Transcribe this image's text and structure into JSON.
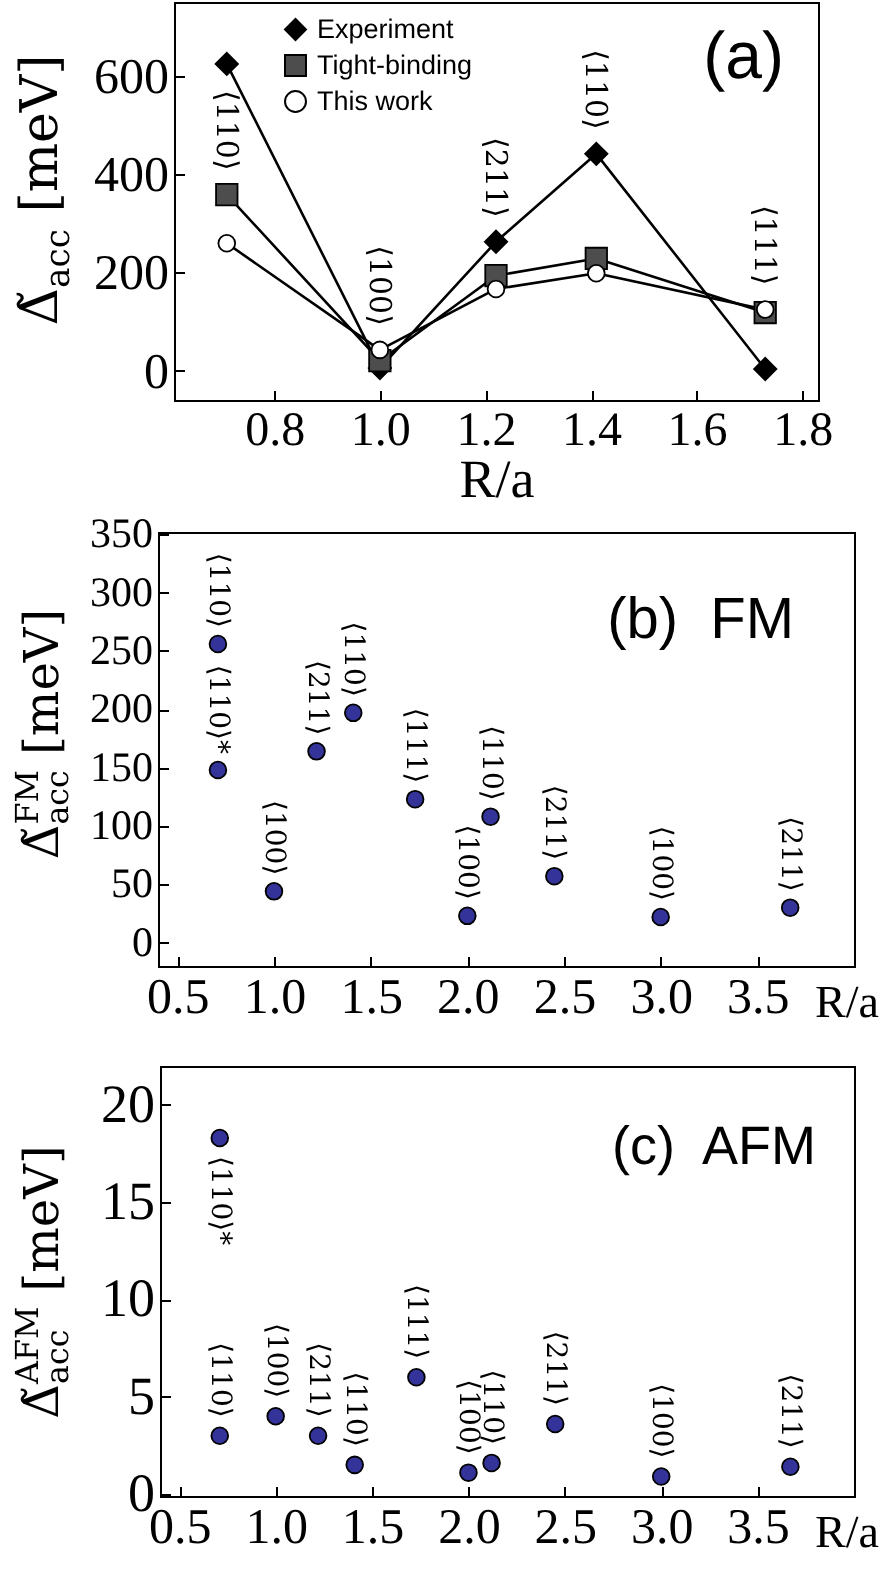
{
  "chart_data": [
    {
      "type": "line",
      "xlabel": "R/a",
      "ylabel": "Δ̃$_{acc}$ [meV]",
      "x": [
        0.71,
        1.0,
        1.22,
        1.41,
        1.73
      ],
      "series": [
        {
          "name": "Experiment",
          "color": "#000000",
          "marker": "diamond",
          "values": [
            624,
            5,
            262,
            441,
            3
          ]
        },
        {
          "name": "Tight-binding",
          "color": "#4d4d4d",
          "marker": "square",
          "values": [
            358,
            20,
            193,
            228,
            118
          ]
        },
        {
          "name": "This work",
          "color": "#ffffff",
          "marker": "circle",
          "values": [
            259,
            42,
            166,
            198,
            124
          ]
        }
      ],
      "xlim": [
        0.61,
        1.83
      ],
      "xticks": [
        0.8,
        {
          "value": 1,
          "label": "1.0"
        },
        1.2,
        1.4,
        1.6,
        1.8
      ],
      "ylim": [
        -60,
        750
      ],
      "yticks": [
        0,
        200,
        400,
        600
      ],
      "legend": "top left",
      "annotations": [
        "(a)",
        {
          "text": "⟨110⟩",
          "x": 0.71,
          "y": 358
        },
        {
          "text": "⟨100⟩",
          "x": 1.0,
          "y": 42
        },
        {
          "text": "⟨211⟩",
          "x": 1.22,
          "y": 262
        },
        {
          "text": "⟨110⟩",
          "x": 1.41,
          "y": 441
        },
        {
          "text": "⟨111⟩",
          "x": 1.73,
          "y": 124
        }
      ]
    },
    {
      "type": "scatter",
      "xlabel": "R/a",
      "ylabel": "Δ̃$_{acc}$$^{FM}$ [meV]",
      "x": [
        0.71,
        0.71,
        1.0,
        1.22,
        1.41,
        1.73,
        2.0,
        2.12,
        2.45,
        3.0,
        3.67
      ],
      "values": [
        256,
        148,
        44,
        164,
        197,
        123,
        23,
        108,
        57,
        22,
        30
      ],
      "color": "#333399",
      "marker": "circle",
      "xlim": [
        0.4,
        4.0
      ],
      "xticks": [
        0.5,
        {
          "value": 1,
          "label": "1.0"
        },
        1.5,
        {
          "value": 2,
          "label": "2.0"
        },
        2.5,
        {
          "value": 3,
          "label": "3.0"
        },
        3.5
      ],
      "ylim": [
        -20,
        352
      ],
      "yticks": [
        0,
        50,
        100,
        150,
        200,
        250,
        300,
        350
      ],
      "annotations": [
        "(b)  FM",
        {
          "text": "⟨110⟩",
          "x": 0.71,
          "y": 256
        },
        {
          "text": "⟨110⟩*",
          "x": 0.71,
          "y": 148
        },
        {
          "text": "⟨100⟩",
          "x": 1.0,
          "y": 44
        },
        {
          "text": "⟨211⟩",
          "x": 1.22,
          "y": 164
        },
        {
          "text": "⟨110⟩",
          "x": 1.41,
          "y": 197
        },
        {
          "text": "⟨111⟩",
          "x": 1.73,
          "y": 123
        },
        {
          "text": "⟨100⟩",
          "x": 2.0,
          "y": 23
        },
        {
          "text": "⟨110⟩",
          "x": 2.12,
          "y": 108
        },
        {
          "text": "⟨211⟩",
          "x": 2.45,
          "y": 57
        },
        {
          "text": "⟨100⟩",
          "x": 3.0,
          "y": 22
        },
        {
          "text": "⟨211⟩",
          "x": 3.67,
          "y": 30
        }
      ]
    },
    {
      "type": "scatter",
      "xlabel": "R/a",
      "ylabel": "Δ̃$_{acc}$$^{AFM}$ [meV]",
      "x": [
        0.71,
        0.71,
        1.0,
        1.22,
        1.41,
        1.73,
        2.0,
        2.12,
        2.45,
        3.0,
        3.67
      ],
      "values": [
        18.3,
        3.0,
        4.0,
        3.0,
        1.5,
        6.0,
        1.1,
        1.6,
        3.6,
        0.9,
        1.4
      ],
      "color": "#333399",
      "marker": "circle",
      "xlim": [
        0.4,
        4.0
      ],
      "xticks": [
        0.5,
        {
          "value": 1,
          "label": "1.0"
        },
        1.5,
        {
          "value": 2,
          "label": "2.0"
        },
        2.5,
        {
          "value": 3,
          "label": "3.0"
        },
        3.5
      ],
      "ylim": [
        -0.1,
        22
      ],
      "yticks": [
        0,
        5,
        10,
        15,
        20
      ],
      "annotations": [
        "(c)  AFM",
        {
          "text": "⟨110⟩*",
          "x": 0.71,
          "y": 18.3
        },
        {
          "text": "⟨110⟩",
          "x": 0.71,
          "y": 3.0
        },
        {
          "text": "⟨100⟩",
          "x": 1.0,
          "y": 4.0
        },
        {
          "text": "⟨211⟩",
          "x": 1.22,
          "y": 3.0
        },
        {
          "text": "⟨110⟩",
          "x": 1.41,
          "y": 1.5
        },
        {
          "text": "⟨111⟩",
          "x": 1.73,
          "y": 6.0
        },
        {
          "text": "⟨100⟩",
          "x": 2.0,
          "y": 1.1
        },
        {
          "text": "⟨110⟩",
          "x": 2.12,
          "y": 1.6
        },
        {
          "text": "⟨211⟩",
          "x": 2.45,
          "y": 3.6
        },
        {
          "text": "⟨100⟩",
          "x": 3.0,
          "y": 0.9
        },
        {
          "text": "⟨211⟩",
          "x": 3.67,
          "y": 1.4
        }
      ]
    }
  ]
}
